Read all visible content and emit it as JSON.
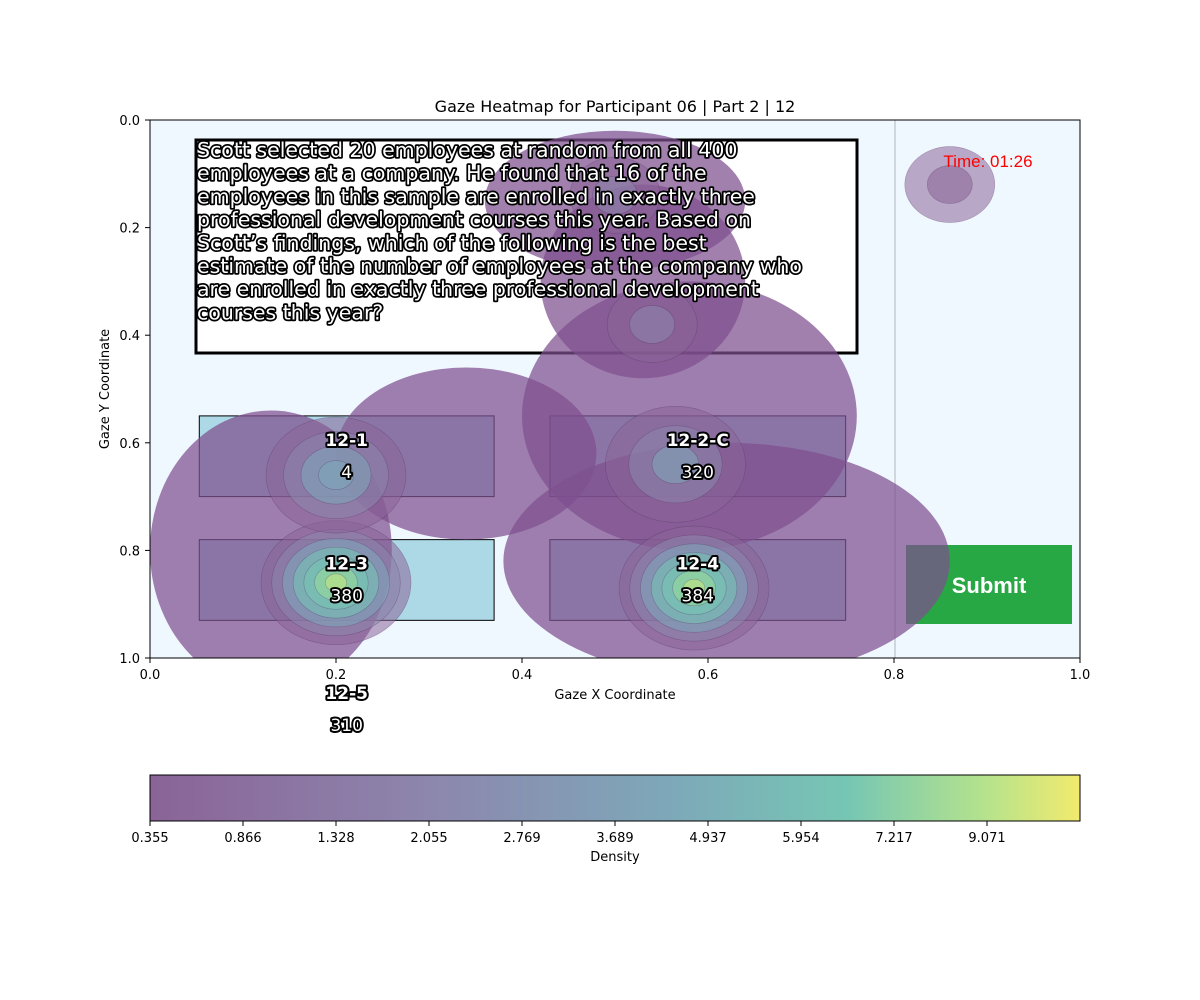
{
  "chart_data": {
    "type": "heatmap",
    "title": "Gaze Heatmap for Participant 06 | Part 2 | 12",
    "xlabel": "Gaze X Coordinate",
    "ylabel": "Gaze Y Coordinate",
    "xlim": [
      0,
      1
    ],
    "ylim": [
      0,
      1
    ],
    "y_inverted": true,
    "x_ticks": [
      "0.0",
      "0.2",
      "0.4",
      "0.6",
      "0.8",
      "1.0"
    ],
    "y_ticks": [
      "0.0",
      "0.2",
      "0.4",
      "0.6",
      "0.8",
      "1.0"
    ],
    "colorbar": {
      "label": "Density",
      "ticks": [
        "0.355",
        "0.866",
        "1.328",
        "2.055",
        "2.769",
        "3.689",
        "4.937",
        "5.954",
        "7.217",
        "9.071"
      ],
      "colormap": "viridis"
    },
    "question": {
      "lines": [
        "Scott selected 20 employees at random from all 400",
        "employees at a company. He found that 16 of the",
        "employees in this sample are enrolled in exactly three",
        "professional development courses this year. Based on",
        "Scott’s findings, which of the following is the best",
        "estimate of the number of employees at the company who",
        "are enrolled in exactly three professional development",
        "courses this year?"
      ]
    },
    "timer": "Time: 01:26",
    "submit_label": "Submit",
    "options": [
      {
        "id": "12-1",
        "value": "4",
        "x0": 0.053,
        "x1": 0.37,
        "y0": 0.55,
        "y1": 0.7
      },
      {
        "id": "12-2-C",
        "value": "320",
        "x0": 0.43,
        "x1": 0.748,
        "y0": 0.55,
        "y1": 0.7
      },
      {
        "id": "12-3",
        "value": "380",
        "x0": 0.053,
        "x1": 0.37,
        "y0": 0.78,
        "y1": 0.93
      },
      {
        "id": "12-4",
        "value": "384",
        "x0": 0.43,
        "x1": 0.748,
        "y0": 0.78,
        "y1": 0.93
      },
      {
        "id": "12-5",
        "value": "310",
        "x0": 0.053,
        "x1": 0.37,
        "y0": 1.02,
        "y1": 1.17
      }
    ],
    "density_peaks": [
      {
        "x": 0.2,
        "y": 0.86,
        "peak": 10.5
      },
      {
        "x": 0.585,
        "y": 0.87,
        "peak": 10.5
      },
      {
        "x": 0.2,
        "y": 0.66,
        "peak": 5.6
      },
      {
        "x": 0.565,
        "y": 0.64,
        "peak": 4.2
      },
      {
        "x": 0.54,
        "y": 0.38,
        "peak": 2.3
      },
      {
        "x": 0.5,
        "y": 0.14,
        "peak": 2.0
      },
      {
        "x": 0.86,
        "y": 0.12,
        "peak": 1.5
      }
    ]
  },
  "colors": {
    "page_bg": "#f0f8ff",
    "option_fill": "#add8e6",
    "submit_fill": "#28a745",
    "timer_text": "#ff0000"
  }
}
